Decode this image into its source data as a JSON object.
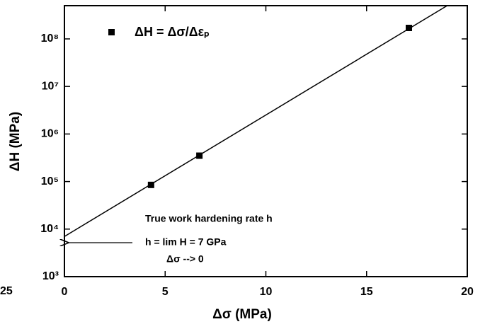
{
  "chart_data": {
    "type": "scatter",
    "x_label": "Δσ (MPa)",
    "y_label": "ΔH (MPa)",
    "xlim": [
      0,
      20
    ],
    "xticks": [
      0,
      5,
      10,
      15,
      20
    ],
    "ylim": [
      1000,
      500000000
    ],
    "yscale": "log",
    "yticks": [
      {
        "value": 1000,
        "label": "10³"
      },
      {
        "value": 10000,
        "label": "10⁴"
      },
      {
        "value": 100000,
        "label": "10⁵"
      },
      {
        "value": 1000000,
        "label": "10⁶"
      },
      {
        "value": 10000000,
        "label": "10⁷"
      },
      {
        "value": 100000000,
        "label": "10⁸"
      }
    ],
    "series": [
      {
        "name": "ΔH = Δσ/Δεₚ",
        "type": "scatter",
        "color": "#000000",
        "x": [
          4.3,
          6.7,
          17.1
        ],
        "values": [
          85000,
          350000,
          170000000
        ]
      },
      {
        "type": "line",
        "color": "#000000",
        "x": [
          0,
          19
        ],
        "values": [
          7000,
          500000000
        ]
      }
    ],
    "annotations": [
      "True work hardening rate h",
      "h = lim H   = 7 GPa",
      "Δσ --> 0",
      "25"
    ]
  }
}
